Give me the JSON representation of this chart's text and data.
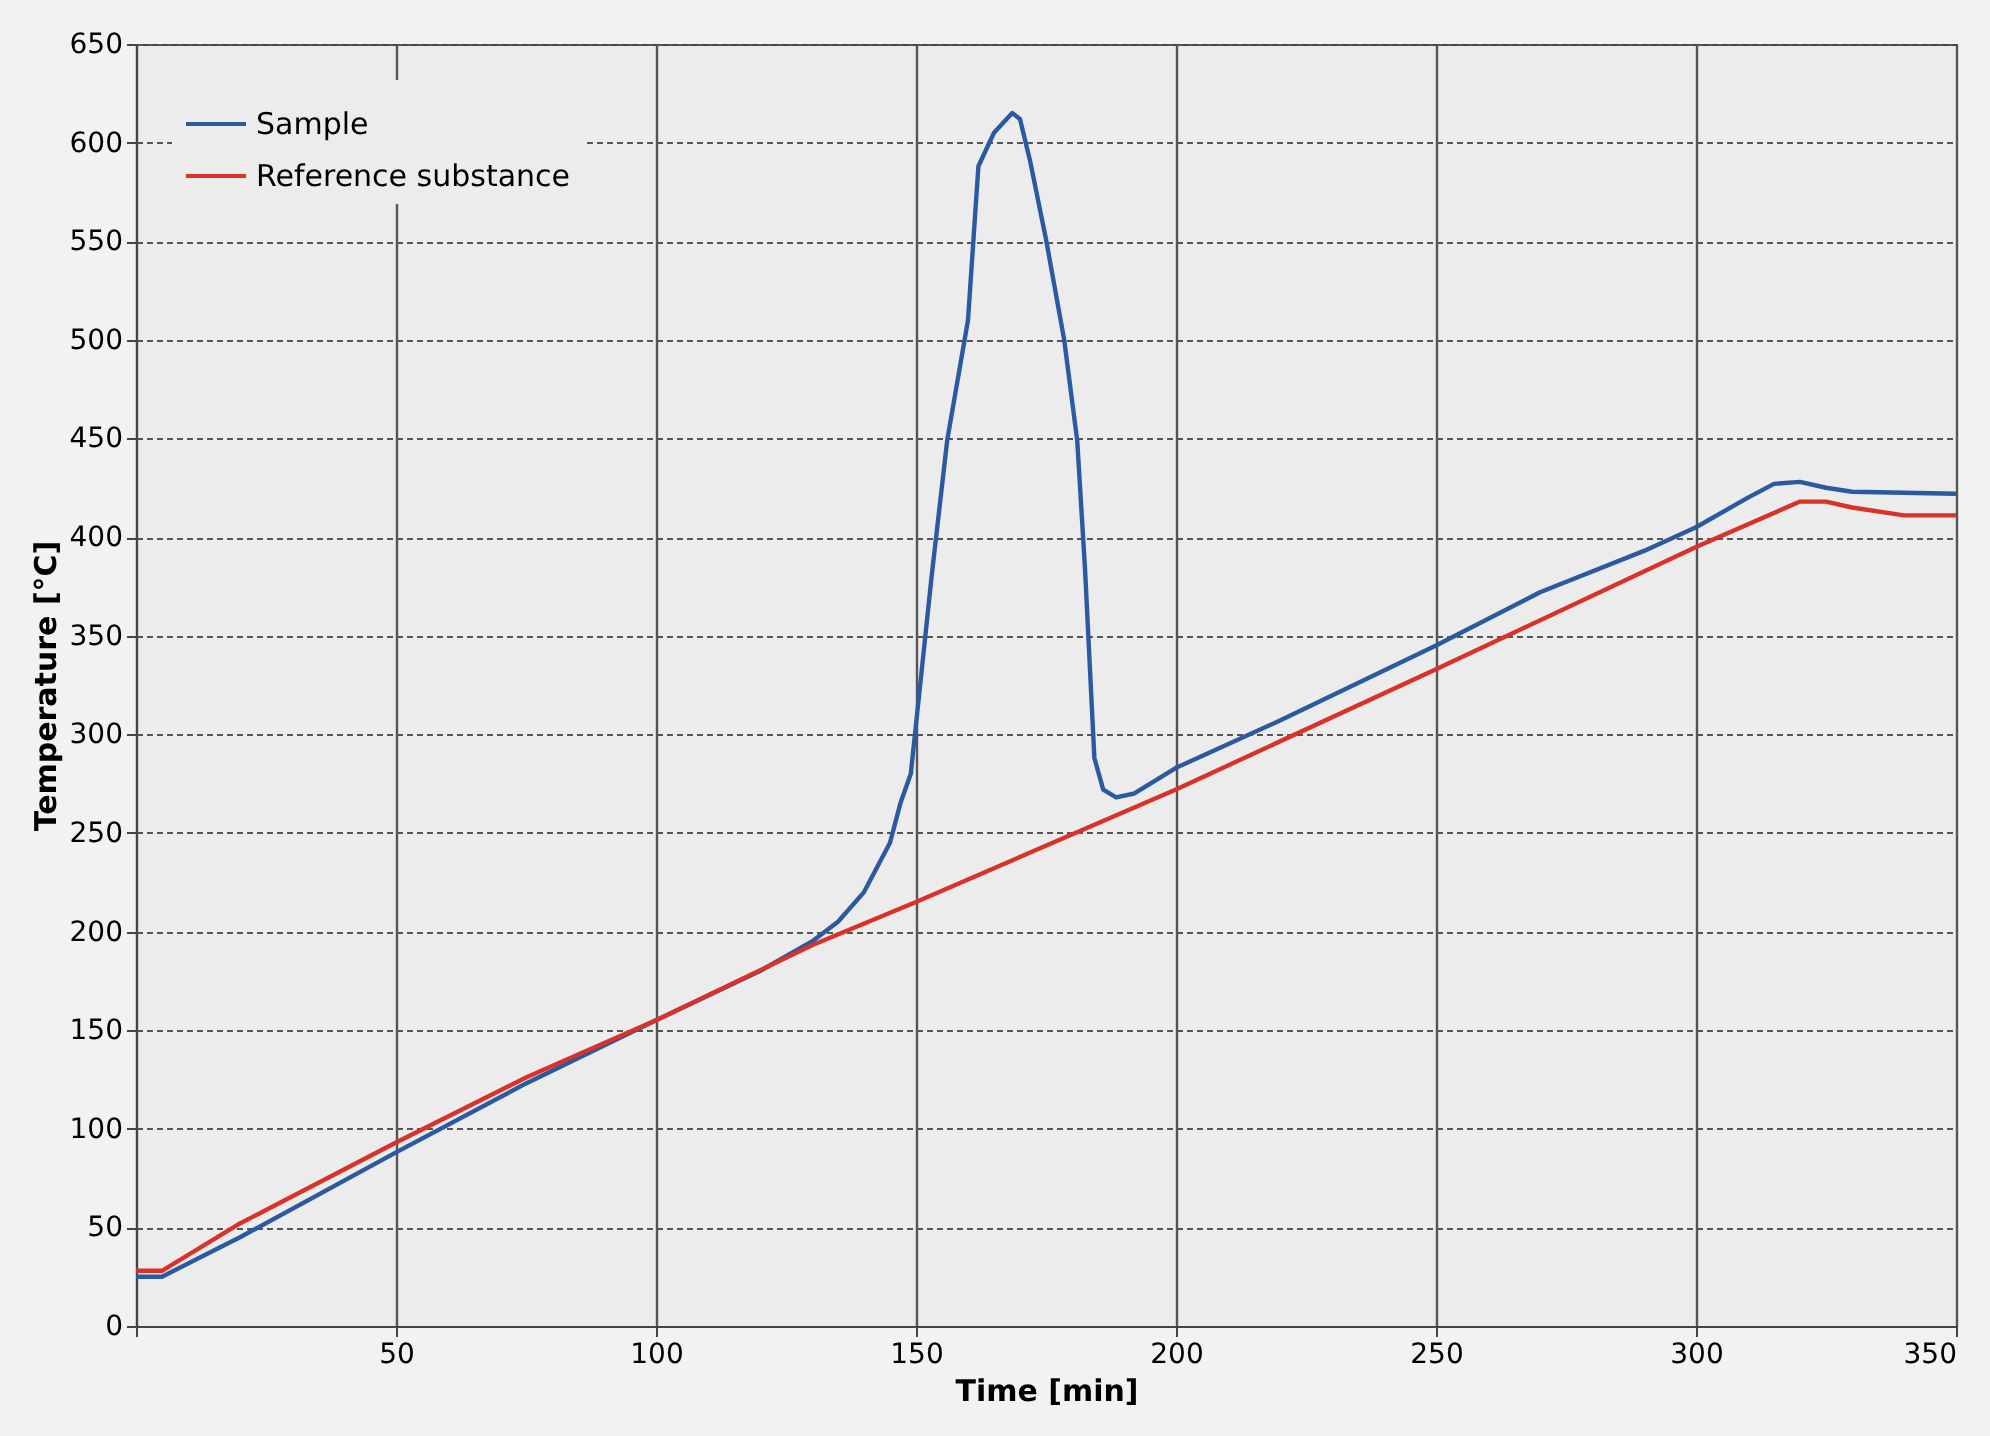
{
  "chart_data": {
    "type": "line",
    "xlabel": "Time [min]",
    "ylabel": "Temperature [°C]",
    "xlim": [
      0,
      350
    ],
    "ylim": [
      0,
      650
    ],
    "xticks": [
      {
        "value": 0,
        "label": null
      },
      50,
      100,
      150,
      200,
      250,
      300,
      350
    ],
    "yticks": [
      0,
      50,
      100,
      150,
      200,
      250,
      300,
      350,
      400,
      450,
      500,
      550,
      600,
      650
    ],
    "grid": true,
    "legend": "top left",
    "line_style": "solid",
    "series": [
      {
        "name": "Sample",
        "color": "#2b5aa0",
        "x": [
          0,
          5,
          20,
          50,
          75,
          100,
          120,
          130,
          135,
          140,
          145,
          147,
          149,
          151,
          153,
          156,
          160,
          162,
          165,
          168.5,
          170,
          172,
          175,
          178.5,
          181,
          182.5,
          184.3,
          186,
          188.5,
          192,
          200,
          220,
          250,
          270,
          290,
          300,
          310,
          315,
          320,
          325,
          330,
          350
        ],
        "values": [
          25,
          25,
          45,
          88,
          123,
          155,
          180,
          195,
          205,
          220,
          245,
          265,
          280,
          330,
          380,
          449,
          510,
          588,
          605,
          615,
          612,
          590,
          551,
          500,
          449,
          384,
          288,
          272,
          268,
          270,
          283,
          307,
          345,
          372,
          393,
          405,
          420,
          427,
          428,
          425,
          423,
          422
        ]
      },
      {
        "name": "Reference substance",
        "color": "#d9322b",
        "x": [
          0,
          5,
          20,
          50,
          75,
          100,
          130,
          150,
          200,
          250,
          300,
          320,
          325,
          330,
          340,
          350
        ],
        "values": [
          28,
          28,
          52,
          93,
          126,
          155,
          193,
          215,
          272,
          333,
          395,
          418,
          418,
          415,
          411,
          411
        ]
      }
    ]
  }
}
